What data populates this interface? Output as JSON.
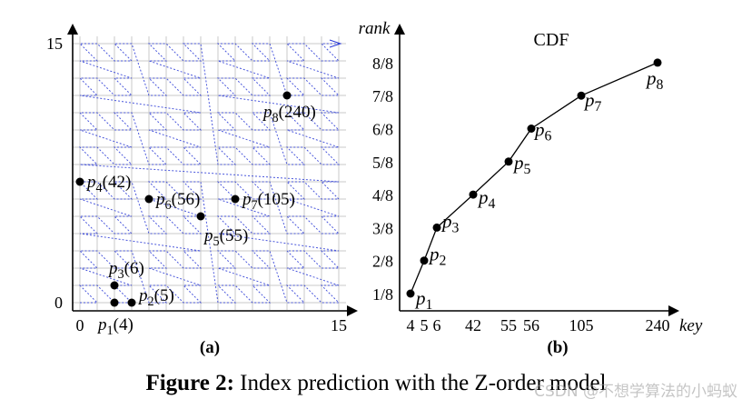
{
  "caption": {
    "label": "Figure 2:",
    "text": "Index prediction with the Z-order model"
  },
  "watermark": "CSDN @不想学算法的小蚂蚁",
  "chart_data": [
    {
      "type": "scatter",
      "panel_label": "(a)",
      "xlim": [
        0,
        15
      ],
      "ylim": [
        0,
        15
      ],
      "x_ticks": [
        "0",
        "15"
      ],
      "y_ticks": [
        "0",
        "15"
      ],
      "grid": true,
      "grid_color": "#c8c8c8",
      "zcurve_color": "#2b3bd6",
      "points": [
        {
          "name": "p",
          "sub": "1",
          "key": "(4)",
          "x": 2,
          "y": 0
        },
        {
          "name": "p",
          "sub": "2",
          "key": "(5)",
          "x": 3,
          "y": 0
        },
        {
          "name": "p",
          "sub": "3",
          "key": "(6)",
          "x": 2,
          "y": 1
        },
        {
          "name": "p",
          "sub": "4",
          "key": "(42)",
          "x": 0,
          "y": 7
        },
        {
          "name": "p",
          "sub": "5",
          "key": "(55)",
          "x": 7,
          "y": 5
        },
        {
          "name": "p",
          "sub": "6",
          "key": "(56)",
          "x": 4,
          "y": 6
        },
        {
          "name": "p",
          "sub": "7",
          "key": "(105)",
          "x": 9,
          "y": 6
        },
        {
          "name": "p",
          "sub": "8",
          "key": "(240)",
          "x": 12,
          "y": 12
        }
      ]
    },
    {
      "type": "line",
      "panel_label": "(b)",
      "title": "CDF",
      "xlabel": "key",
      "ylabel": "rank",
      "x_tick_labels": [
        "4",
        "5",
        "6",
        "42",
        "55",
        "56",
        "105",
        "240"
      ],
      "y_tick_labels": [
        "1/8",
        "2/8",
        "3/8",
        "4/8",
        "5/8",
        "6/8",
        "7/8",
        "8/8"
      ],
      "series": [
        {
          "points": [
            {
              "label": "p",
              "sub": "1",
              "key": 4,
              "rank": 1
            },
            {
              "label": "p",
              "sub": "2",
              "key": 5,
              "rank": 2
            },
            {
              "label": "p",
              "sub": "3",
              "key": 6,
              "rank": 3
            },
            {
              "label": "p",
              "sub": "4",
              "key": 42,
              "rank": 4
            },
            {
              "label": "p",
              "sub": "5",
              "key": 55,
              "rank": 5
            },
            {
              "label": "p",
              "sub": "6",
              "key": 56,
              "rank": 6
            },
            {
              "label": "p",
              "sub": "7",
              "key": 105,
              "rank": 7
            },
            {
              "label": "p",
              "sub": "8",
              "key": 240,
              "rank": 8
            }
          ]
        }
      ]
    }
  ]
}
